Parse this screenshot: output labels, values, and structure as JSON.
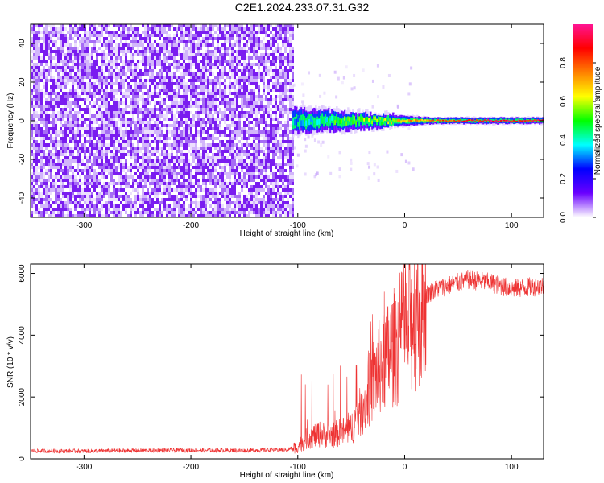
{
  "title": "C2E1.2024.233.07.31.G32",
  "chart_data": [
    {
      "type": "heatmap",
      "xlabel": "Height of straight line (km)",
      "ylabel": "Frequency (Hz)",
      "xlim": [
        -350,
        130
      ],
      "ylim": [
        -50,
        50
      ],
      "x_ticks": [
        -300,
        -200,
        -100,
        0,
        100
      ],
      "x_tick_labels": [
        "-300",
        "-200",
        "-100",
        "0",
        "100"
      ],
      "y_ticks": [
        -40,
        -20,
        0,
        20,
        40
      ],
      "y_tick_labels": [
        "-40",
        "-20",
        "0",
        "20",
        "40"
      ],
      "colorbar": {
        "label": "Normalized spectral amplitude",
        "range": [
          0,
          1
        ],
        "ticks": [
          0,
          0.2,
          0.4,
          0.6,
          0.8
        ],
        "tick_labels": [
          "0.0",
          "0.2",
          "0.4",
          "0.6",
          "0.8"
        ],
        "colormap": [
          "#ffffff",
          "#6a00ff",
          "#0000ff",
          "#00ffff",
          "#00ff00",
          "#ffff00",
          "#ff8000",
          "#ff0000",
          "#ff1493"
        ]
      },
      "features": [
        {
          "description_type": "noise_region",
          "x_range": [
            -350,
            -105
          ],
          "freq_range": [
            -50,
            50
          ],
          "amplitude": 0.05
        },
        {
          "description_type": "signal_band",
          "x_range": [
            -105,
            130
          ],
          "center_freq": 0,
          "half_width_hz_start": 8,
          "half_width_hz_end": 2,
          "amplitude_start": 0.35,
          "amplitude_end": 0.9
        }
      ]
    },
    {
      "type": "line",
      "xlabel": "Height of straight line (km)",
      "ylabel": "SNR (10 * v/v)",
      "xlim": [
        -350,
        130
      ],
      "ylim": [
        0,
        6300
      ],
      "x_ticks": [
        -300,
        -200,
        -100,
        0,
        100
      ],
      "x_tick_labels": [
        "-300",
        "-200",
        "-100",
        "0",
        "100"
      ],
      "y_ticks": [
        0,
        2000,
        4000,
        6000
      ],
      "y_tick_labels": [
        "0",
        "2000",
        "4000",
        "6000"
      ],
      "series_color": "#ee3333",
      "envelope": {
        "x": [
          -350,
          -300,
          -250,
          -200,
          -150,
          -110,
          -100,
          -90,
          -80,
          -70,
          -60,
          -50,
          -40,
          -30,
          -20,
          -10,
          0,
          10,
          20,
          30,
          40,
          60,
          80,
          100,
          130
        ],
        "y": [
          260,
          250,
          270,
          280,
          270,
          300,
          400,
          700,
          800,
          750,
          850,
          1000,
          1600,
          2500,
          3200,
          3600,
          4100,
          4700,
          5300,
          5500,
          5600,
          5800,
          5700,
          5500,
          5600
        ]
      }
    }
  ]
}
